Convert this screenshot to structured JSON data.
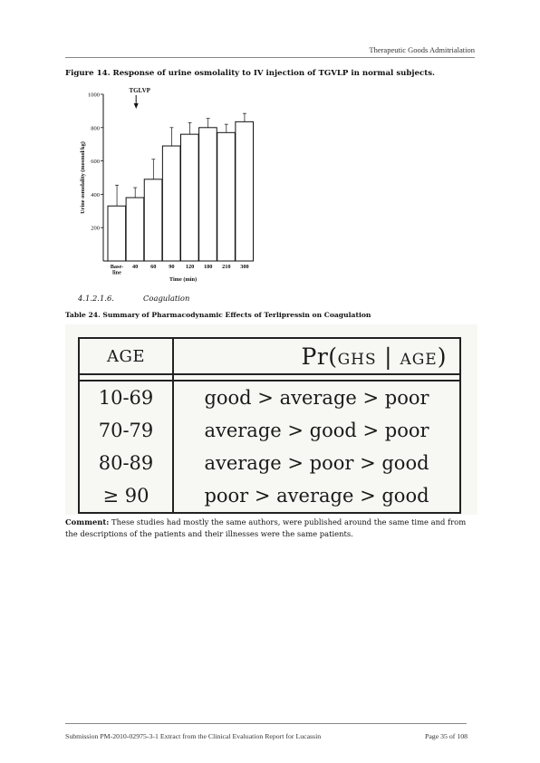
{
  "header": {
    "text": "Therapeutic Goods Admitrialation"
  },
  "figure": {
    "caption": "Figure 14. Response of urine osmolality to IV injection of TGVLP in normal subjects."
  },
  "chart_data": {
    "type": "bar",
    "annotation": "TGLVP",
    "ylabel": "Urine osmolality (mosmol/kg)",
    "xlabel": "Time (min)",
    "ylim": [
      0,
      1000
    ],
    "y_ticks": [
      "1000",
      "800",
      "600",
      "400",
      "200"
    ],
    "categories": [
      "Base-line",
      "40",
      "60",
      "90",
      "120",
      "180",
      "210",
      "300"
    ],
    "values": [
      330,
      380,
      490,
      690,
      760,
      800,
      770,
      835
    ],
    "errors": [
      125,
      60,
      120,
      110,
      70,
      55,
      50,
      50
    ]
  },
  "section": {
    "number": "4.1.2.1.6.",
    "title": "Coagulation"
  },
  "table": {
    "caption": "Table 24. Summary of Pharmacodynamic Effects of Terlipressin on Coagulation",
    "header_col1": "AGE",
    "header_col2_pr": "Pr(",
    "header_col2_ghs": "GHS",
    "header_col2_sep": " | ",
    "header_col2_age": "AGE",
    "header_col2_close": ")",
    "rows": [
      {
        "age": "10-69",
        "order": "good > average > poor"
      },
      {
        "age": "70-79",
        "order": "average > good > poor"
      },
      {
        "age": "80-89",
        "order": "average > poor > good"
      },
      {
        "age": "≥ 90",
        "order": "poor > average > good"
      }
    ]
  },
  "comment": {
    "label": "Comment:",
    "text": " These studies had mostly the same authors, were published around the same time and from the descriptions of the patients and their illnesses were the same patients."
  },
  "footer": {
    "left": "Submission PM-2010-02975-3-1 Extract from the Clinical Evaluation Report for Lucassin",
    "right": "Page 35 of 108"
  }
}
